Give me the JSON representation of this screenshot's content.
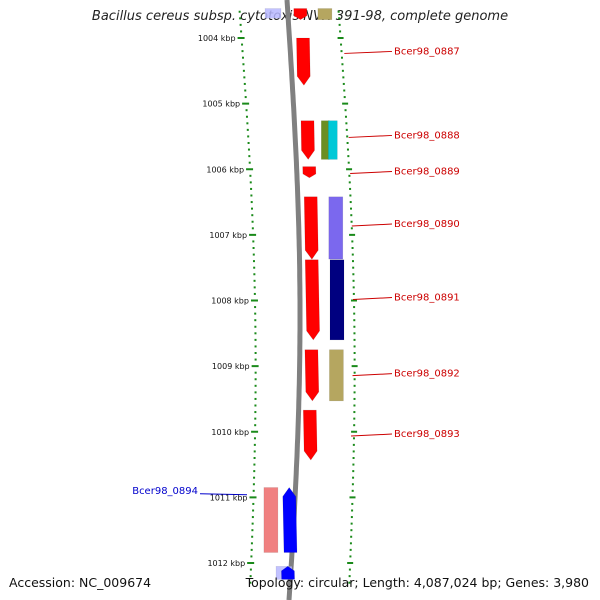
{
  "title": "Bacillus cereus subsp. cytotoxis NVH 391-98, complete genome",
  "footer": {
    "accession": "Accession: NC_009674",
    "topology": "Topology: circular; Length: 4,087,024 bp; Genes: 3,980"
  },
  "colors": {
    "tick": "#1a8a1a",
    "backbone": "#808080",
    "forward_label": "#cc0000",
    "reverse_label": "#0000cc",
    "gene_red": "#ff0000",
    "gene_blue": "#0000ff",
    "gene_pink": "#f08080",
    "gene_olive": "#b5a660",
    "gene_purple": "#7b68ee",
    "gene_navy": "#000080",
    "gene_cyan": "#00c8d7",
    "gene_green": "#6b8e23",
    "gene_lavender": "#b8b8ff"
  },
  "axis": {
    "unit": "kbp",
    "start_kbp": 1003.6,
    "end_kbp": 1012.2,
    "ticks": [
      {
        "value": 1004,
        "label": "1004 kbp"
      },
      {
        "value": 1005,
        "label": "1005 kbp"
      },
      {
        "value": 1006,
        "label": "1006 kbp"
      },
      {
        "value": 1007,
        "label": "1007 kbp"
      },
      {
        "value": 1008,
        "label": "1008 kbp"
      },
      {
        "value": 1009,
        "label": "1009 kbp"
      },
      {
        "value": 1010,
        "label": "1010 kbp"
      },
      {
        "value": 1011,
        "label": "1011 kbp"
      },
      {
        "value": 1012,
        "label": "1012 kbp"
      }
    ]
  },
  "genes": [
    {
      "name": "",
      "strand": "+",
      "start": 1003.55,
      "end": 1003.72,
      "color": "gene_red",
      "labeled": false
    },
    {
      "name": "Bcer98_0887",
      "strand": "+",
      "start": 1004.0,
      "end": 1004.72,
      "color": "gene_red",
      "labeled": true,
      "label_at": 1004.22
    },
    {
      "name": "Bcer98_0888",
      "strand": "+",
      "start": 1005.26,
      "end": 1005.85,
      "color": "gene_red",
      "labeled": true,
      "label_at": 1005.5
    },
    {
      "name": "Bcer98_0889",
      "strand": "+",
      "start": 1005.96,
      "end": 1006.13,
      "color": "gene_red",
      "labeled": true,
      "label_at": 1006.05
    },
    {
      "name": "Bcer98_0890",
      "strand": "+",
      "start": 1006.42,
      "end": 1007.37,
      "color": "gene_red",
      "labeled": true,
      "label_at": 1006.85
    },
    {
      "name": "Bcer98_0891",
      "strand": "+",
      "start": 1007.38,
      "end": 1008.6,
      "color": "gene_red",
      "labeled": true,
      "label_at": 1007.97
    },
    {
      "name": "Bcer98_0892",
      "strand": "+",
      "start": 1008.75,
      "end": 1009.53,
      "color": "gene_red",
      "labeled": true,
      "label_at": 1009.13
    },
    {
      "name": "Bcer98_0893",
      "strand": "+",
      "start": 1009.67,
      "end": 1010.43,
      "color": "gene_red",
      "labeled": true,
      "label_at": 1010.05
    },
    {
      "name": "Bcer98_0894",
      "strand": "-",
      "start": 1010.85,
      "end": 1011.84,
      "color": "gene_blue",
      "labeled": true,
      "label_at": 1010.93
    },
    {
      "name": "",
      "strand": "-",
      "start": 1012.05,
      "end": 1012.25,
      "color": "gene_blue",
      "labeled": false
    }
  ],
  "features": [
    {
      "track": "fwd_inner",
      "start": 1003.55,
      "end": 1003.72,
      "color": "gene_olive"
    },
    {
      "track": "fwd_inner_a",
      "start": 1005.26,
      "end": 1005.85,
      "color": "gene_green"
    },
    {
      "track": "fwd_inner_b",
      "start": 1005.26,
      "end": 1005.85,
      "color": "gene_cyan"
    },
    {
      "track": "fwd_inner",
      "start": 1006.42,
      "end": 1007.37,
      "color": "gene_purple"
    },
    {
      "track": "fwd_inner",
      "start": 1007.38,
      "end": 1008.6,
      "color": "gene_navy"
    },
    {
      "track": "fwd_inner",
      "start": 1008.75,
      "end": 1009.53,
      "color": "gene_olive"
    },
    {
      "track": "rev_inner",
      "start": 1010.85,
      "end": 1011.84,
      "color": "gene_pink"
    },
    {
      "track": "rev_top",
      "start": 1003.55,
      "end": 1003.7,
      "color": "gene_lavender"
    },
    {
      "track": "rev_bottom",
      "start": 1012.05,
      "end": 1012.25,
      "color": "gene_lavender"
    }
  ]
}
